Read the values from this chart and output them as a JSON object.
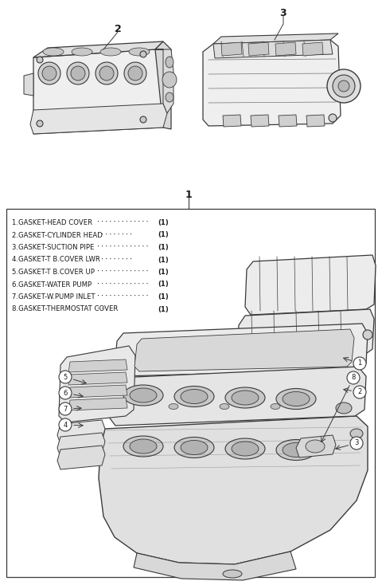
{
  "bg_color": "#ffffff",
  "line_color": "#3a3a3a",
  "text_color": "#1a1a1a",
  "parts_list": [
    "1.GASKET-HEAD COVER",
    "2.GASKET-CYLINDER HEAD",
    "3.GASKET-SUCTION PIPE",
    "4.GASKET-T B.COVER LWR",
    "5.GASKET-T B.COVER UP",
    "6.GASKET-WATER PUMP",
    "7.GASKET-W.PUMP INLET",
    "8.GASKET-THERMOSTAT COVER"
  ],
  "parts_dots": [
    "·············",
    "·········",
    "·············",
    "·········",
    "·············",
    "·············",
    "·············",
    "··"
  ],
  "parts_qty": [
    "(1)",
    "(1)",
    "(1)",
    "(1)",
    "(1)",
    "(1)",
    "(1)",
    "(1)"
  ]
}
